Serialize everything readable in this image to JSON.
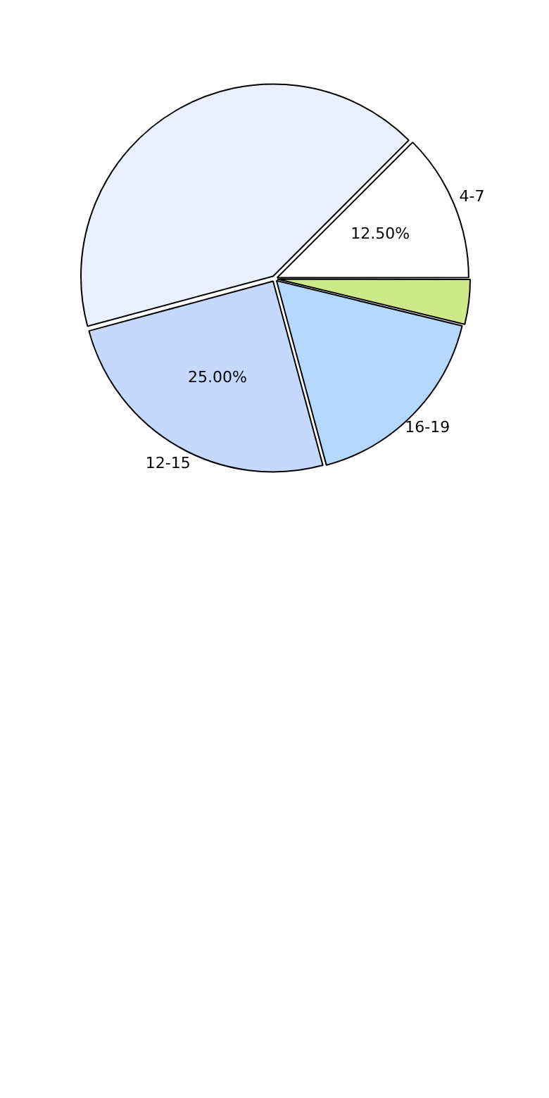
{
  "chart_data": {
    "type": "pie",
    "categories": [
      null,
      "16-19",
      "12-15",
      null,
      "4-7"
    ],
    "values": [
      3.8,
      17,
      25,
      41.7,
      12.5
    ],
    "colors": [
      "#cdea8a",
      "#b5d8fe",
      "#c5d8fe",
      "#eaf1fe",
      "#ffffff"
    ],
    "value_labels": [
      null,
      null,
      "25.00%",
      null,
      "12.50%"
    ],
    "legend": false
  }
}
